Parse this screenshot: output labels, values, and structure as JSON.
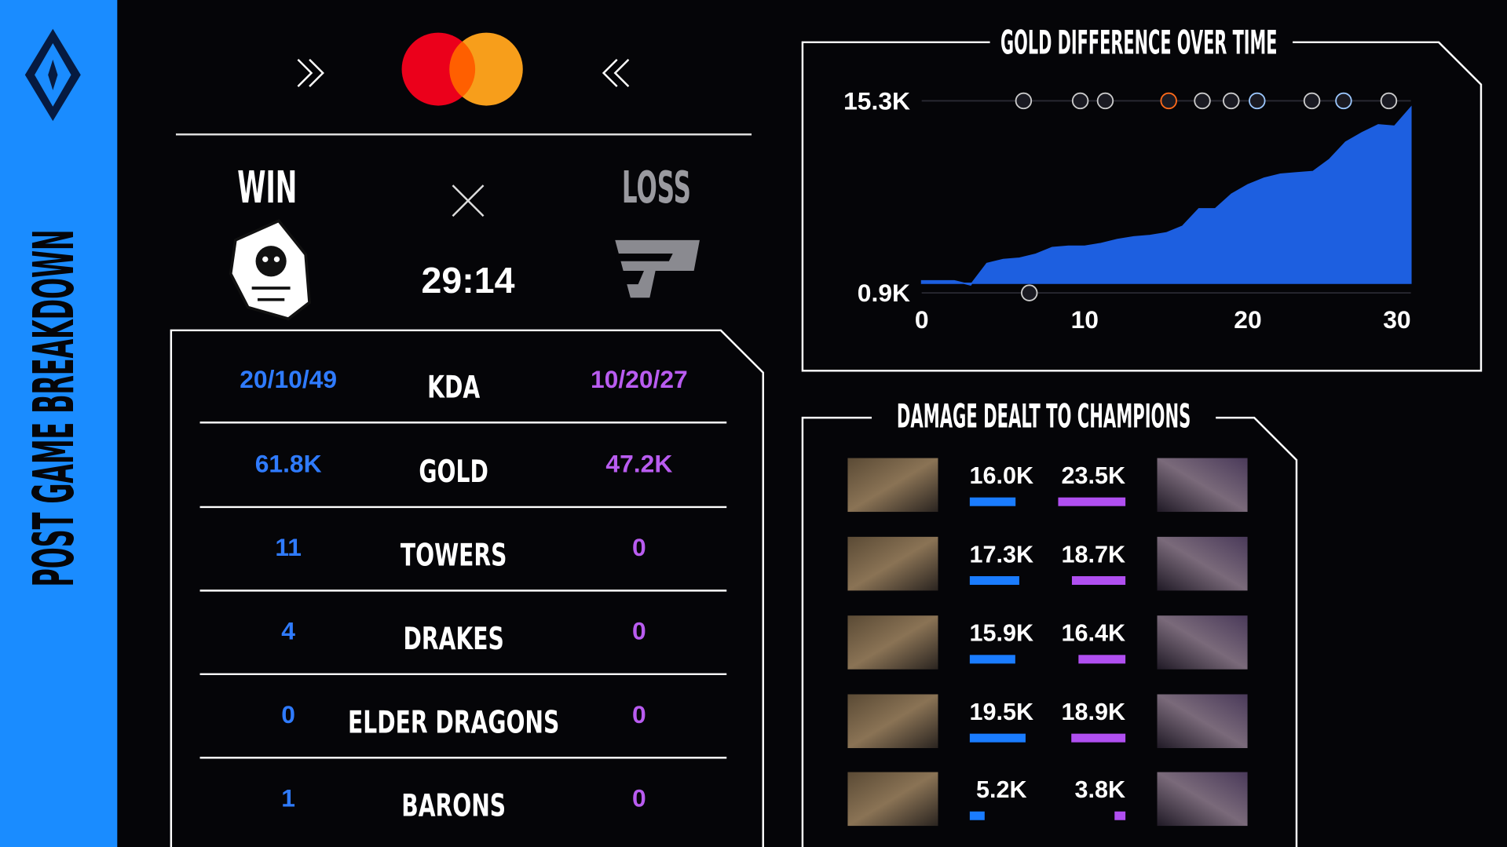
{
  "sidebar_title": "POST GAME BREAKDOWN",
  "match": {
    "win_label": "WIN",
    "loss_label": "LOSS",
    "duration": "29:14"
  },
  "stats": {
    "rows": [
      {
        "label": "KDA",
        "left": "20/10/49",
        "right": "10/20/27"
      },
      {
        "label": "GOLD",
        "left": "61.8K",
        "right": "47.2K"
      },
      {
        "label": "TOWERS",
        "left": "11",
        "right": "0"
      },
      {
        "label": "DRAKES",
        "left": "4",
        "right": "0"
      },
      {
        "label": "ELDER DRAGONS",
        "left": "0",
        "right": "0"
      },
      {
        "label": "BARONS",
        "left": "1",
        "right": "0"
      }
    ]
  },
  "chart_data": [
    {
      "type": "area",
      "title": "GOLD DIFFERENCE OVER TIME",
      "x": [
        0,
        1,
        2,
        3,
        4,
        5,
        6,
        7,
        8,
        9,
        10,
        11,
        12,
        13,
        14,
        15,
        16,
        17,
        18,
        19,
        20,
        21,
        22,
        23,
        24,
        25,
        26,
        27,
        28,
        29,
        30
      ],
      "values": [
        1800,
        1800,
        1800,
        1500,
        3100,
        3400,
        3500,
        3800,
        4300,
        4400,
        4400,
        4600,
        4900,
        5100,
        5200,
        5400,
        5900,
        7200,
        7200,
        8300,
        9000,
        9500,
        9800,
        9900,
        10000,
        10900,
        12200,
        12900,
        13500,
        13400,
        14800
      ],
      "color": "#1d5fe0",
      "xlim": [
        0,
        30
      ],
      "xticks": [
        0,
        10,
        20,
        30
      ],
      "ylim": [
        900,
        15300
      ],
      "yticks": [
        {
          "value": 900,
          "label": "0.9K"
        },
        {
          "value": 15300,
          "label": "15.3K"
        }
      ]
    },
    {
      "type": "bar",
      "title": "DAMAGE DEALT TO CHAMPIONS",
      "series": [
        {
          "color": "#1a7cff",
          "values": [
            16000,
            17300,
            15900,
            19500,
            5200
          ],
          "value_labels": [
            "16.0K",
            "17.3K",
            "15.9K",
            "19.5K",
            "5.2K"
          ]
        },
        {
          "color": "#b04ff0",
          "values": [
            23500,
            18700,
            16400,
            18900,
            3800
          ],
          "value_labels": [
            "23.5K",
            "18.7K",
            "16.4K",
            "18.9K",
            "3.8K"
          ]
        }
      ]
    }
  ]
}
